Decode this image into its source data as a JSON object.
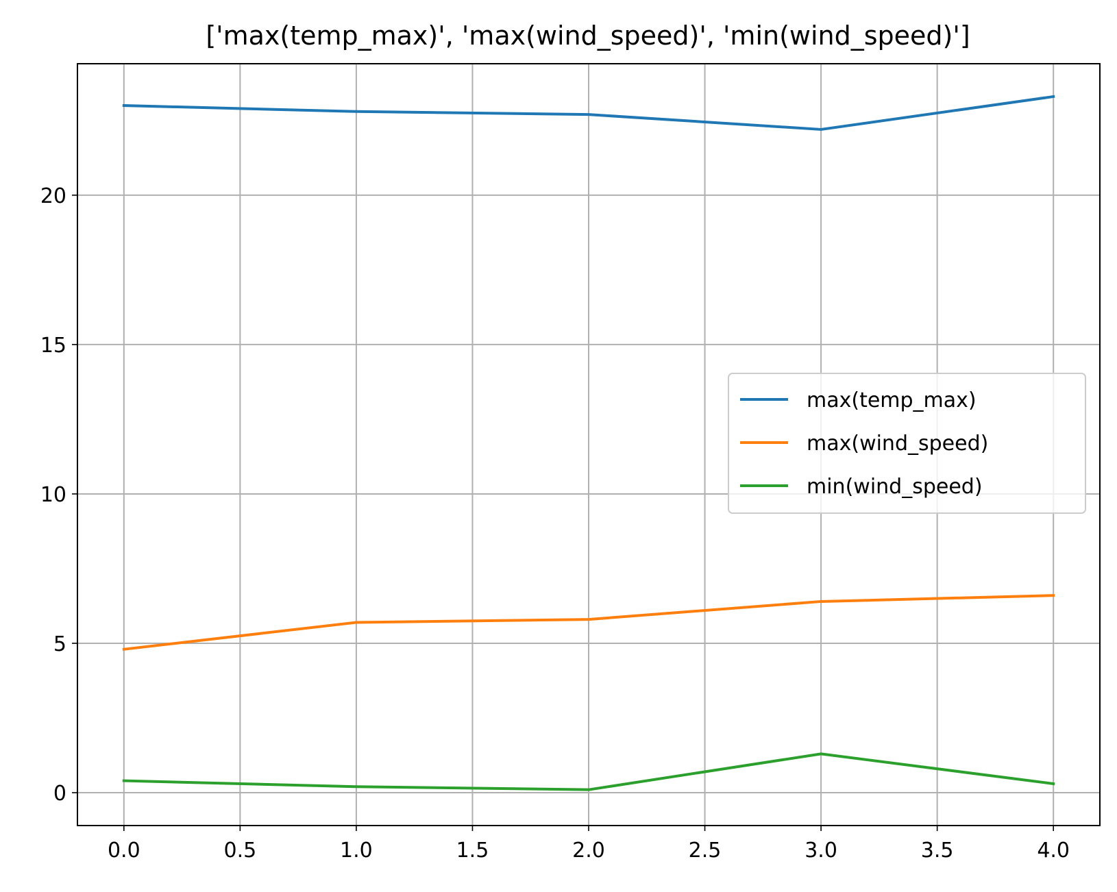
{
  "chart_data": {
    "type": "line",
    "title": "['max(temp_max)', 'max(wind_speed)', 'min(wind_speed)']",
    "xlabel": "",
    "ylabel": "",
    "x": [
      0,
      1,
      2,
      3,
      4
    ],
    "xlim": [
      -0.2,
      4.2
    ],
    "ylim": [
      -1.1,
      24.4
    ],
    "xticks": [
      0.0,
      0.5,
      1.0,
      1.5,
      2.0,
      2.5,
      3.0,
      3.5,
      4.0
    ],
    "xtick_labels": [
      "0.0",
      "0.5",
      "1.0",
      "1.5",
      "2.0",
      "2.5",
      "3.0",
      "3.5",
      "4.0"
    ],
    "yticks": [
      0,
      5,
      10,
      15,
      20
    ],
    "ytick_labels": [
      "0",
      "5",
      "10",
      "15",
      "20"
    ],
    "grid": true,
    "legend_position": "center-right",
    "series": [
      {
        "name": "max(temp_max)",
        "color": "#1f77b4",
        "values": [
          23.0,
          22.8,
          22.7,
          22.2,
          23.3
        ]
      },
      {
        "name": "max(wind_speed)",
        "color": "#ff7f0e",
        "values": [
          4.8,
          5.7,
          5.8,
          6.4,
          6.6
        ]
      },
      {
        "name": "min(wind_speed)",
        "color": "#2ca02c",
        "values": [
          0.4,
          0.2,
          0.1,
          1.3,
          0.3
        ]
      }
    ]
  }
}
